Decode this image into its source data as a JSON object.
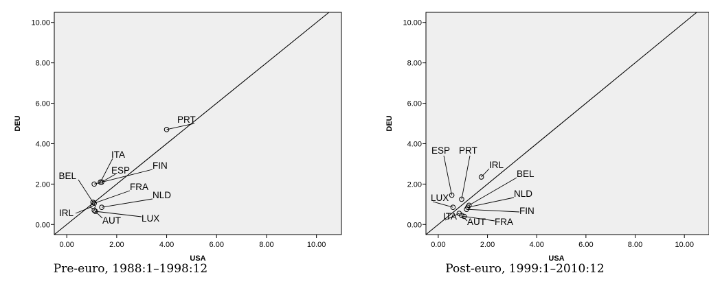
{
  "chart_data": [
    {
      "type": "scatter",
      "xlabel": "USA",
      "ylabel": "DEU",
      "xlim": [
        -0.5,
        11.0
      ],
      "ylim": [
        -0.5,
        10.5
      ],
      "xticks": [
        "0.00",
        "2.00",
        "4.00",
        "6.00",
        "8.00",
        "10.00"
      ],
      "yticks": [
        "0.00",
        "2.00",
        "4.00",
        "6.00",
        "8.00",
        "10.00"
      ],
      "reference_line": "y = x",
      "points": [
        {
          "name": "PRT",
          "x": 4.0,
          "y": 4.7
        },
        {
          "name": "ITA",
          "x": 1.35,
          "y": 2.1
        },
        {
          "name": "ESP",
          "x": 1.4,
          "y": 2.1
        },
        {
          "name": "FIN",
          "x": 1.1,
          "y": 2.0
        },
        {
          "name": "BEL",
          "x": 1.05,
          "y": 1.1
        },
        {
          "name": "FRA",
          "x": 1.1,
          "y": 1.05
        },
        {
          "name": "NLD",
          "x": 1.4,
          "y": 0.85
        },
        {
          "name": "IRL",
          "x": 1.05,
          "y": 0.9
        },
        {
          "name": "AUT",
          "x": 1.1,
          "y": 0.7
        },
        {
          "name": "LUX",
          "x": 1.15,
          "y": 0.65
        }
      ],
      "caption": "Pre-euro, 1988:1–1998:12"
    },
    {
      "type": "scatter",
      "xlabel": "USA",
      "ylabel": "DEU",
      "xlim": [
        -0.5,
        11.0
      ],
      "ylim": [
        -0.5,
        10.5
      ],
      "xticks": [
        "0.00",
        "2.00",
        "4.00",
        "6.00",
        "8.00",
        "10.00"
      ],
      "yticks": [
        "0.00",
        "2.00",
        "4.00",
        "6.00",
        "8.00",
        "10.00"
      ],
      "reference_line": "y = x",
      "points": [
        {
          "name": "ESP",
          "x": 0.55,
          "y": 1.45
        },
        {
          "name": "PRT",
          "x": 0.95,
          "y": 1.25
        },
        {
          "name": "IRL",
          "x": 1.75,
          "y": 2.35
        },
        {
          "name": "BEL",
          "x": 1.25,
          "y": 0.95
        },
        {
          "name": "NLD",
          "x": 1.2,
          "y": 0.85
        },
        {
          "name": "FIN",
          "x": 1.15,
          "y": 0.75
        },
        {
          "name": "LUX",
          "x": 0.6,
          "y": 0.85
        },
        {
          "name": "ITA",
          "x": 0.85,
          "y": 0.55
        },
        {
          "name": "AUT",
          "x": 0.95,
          "y": 0.45
        },
        {
          "name": "FRA",
          "x": 1.05,
          "y": 0.4
        }
      ],
      "caption": "Post-euro, 1999:1–2010:12"
    }
  ]
}
